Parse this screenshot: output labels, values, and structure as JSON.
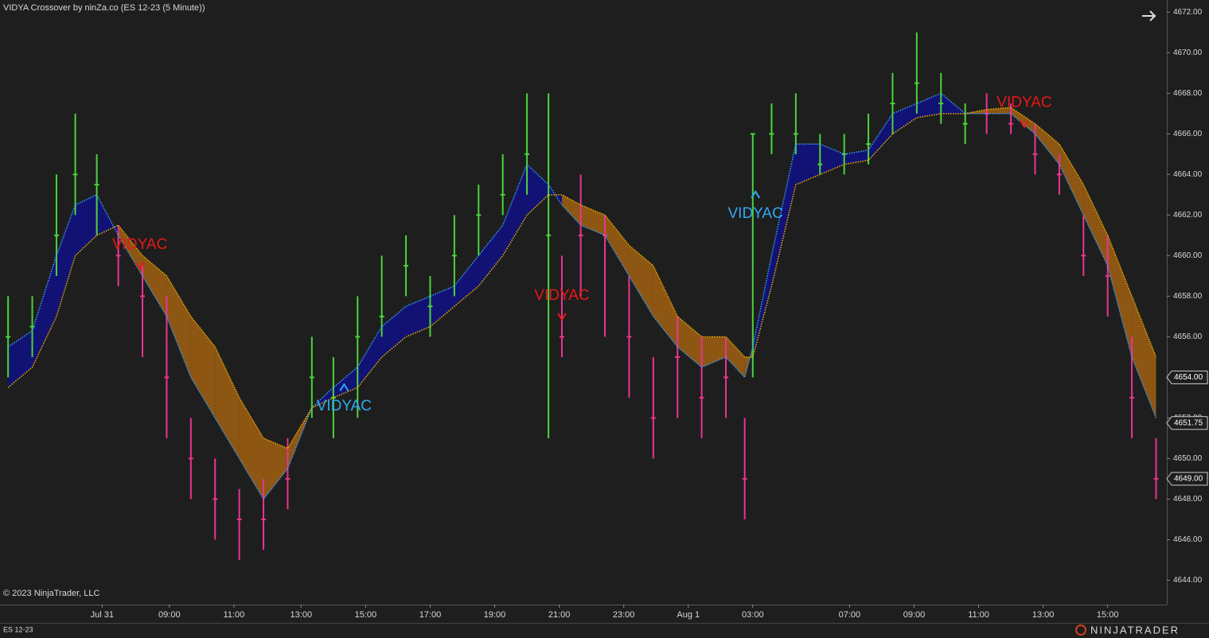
{
  "chart_data": {
    "type": "range",
    "title": "VIDYA Crossover by ninZa.co (ES 12-23 (5 Minute))",
    "copyright": "© 2023 NinjaTrader, LLC",
    "instrument": "ES 12-23",
    "brand": "NINJATRADER",
    "xlim": [
      0,
      434
    ],
    "ylim": [
      4642.8,
      4672.6
    ],
    "yticks": [
      {
        "value": 4644,
        "label": "4644.00"
      },
      {
        "value": 4646,
        "label": "4646.00"
      },
      {
        "value": 4648,
        "label": "4648.00"
      },
      {
        "value": 4650,
        "label": "4650.00"
      },
      {
        "value": 4652,
        "label": "4652.00"
      },
      {
        "value": 4654,
        "label": "4654.00"
      },
      {
        "value": 4656,
        "label": "4656.00"
      },
      {
        "value": 4658,
        "label": "4658.00"
      },
      {
        "value": 4660,
        "label": "4660.00"
      },
      {
        "value": 4662,
        "label": "4662.00"
      },
      {
        "value": 4664,
        "label": "4664.00"
      },
      {
        "value": 4666,
        "label": "4666.00"
      },
      {
        "value": 4668,
        "label": "4668.00"
      },
      {
        "value": 4670,
        "label": "4670.00"
      },
      {
        "value": 4672,
        "label": "4672.00"
      }
    ],
    "xticks": [
      {
        "value": 38,
        "label": "Jul 31"
      },
      {
        "value": 63,
        "label": "09:00"
      },
      {
        "value": 87,
        "label": "11:00"
      },
      {
        "value": 112,
        "label": "13:00"
      },
      {
        "value": 136,
        "label": "15:00"
      },
      {
        "value": 160,
        "label": "17:00"
      },
      {
        "value": 184,
        "label": "19:00"
      },
      {
        "value": 208,
        "label": "21:00"
      },
      {
        "value": 232,
        "label": "23:00"
      },
      {
        "value": 256,
        "label": "Aug 1"
      },
      {
        "value": 280,
        "label": "03:00"
      },
      {
        "value": 316,
        "label": "07:00"
      },
      {
        "value": 340,
        "label": "09:00"
      },
      {
        "value": 364,
        "label": "11:00"
      },
      {
        "value": 388,
        "label": "13:00"
      },
      {
        "value": 412,
        "label": "15:00"
      }
    ],
    "x": [
      3,
      12,
      21,
      28,
      36,
      44,
      53,
      62,
      71,
      80,
      89,
      98,
      107,
      116,
      124,
      133,
      142,
      151,
      160,
      169,
      178,
      187,
      196,
      204,
      209,
      216,
      225,
      234,
      243,
      252,
      261,
      270,
      277,
      280,
      287,
      296,
      305,
      314,
      323,
      332,
      341,
      350,
      359,
      367,
      376,
      385,
      394,
      403,
      412,
      421,
      430
    ],
    "high": [
      4658,
      4658,
      4664,
      4667,
      4665,
      4661.5,
      4659.5,
      4658,
      4652,
      4650,
      4648.5,
      4649,
      4651,
      4656,
      4655,
      4658,
      4660,
      4661,
      4659,
      4662,
      4663.5,
      4665,
      4668,
      4668,
      4660,
      4664,
      4662,
      4659,
      4655,
      4657,
      4656,
      4656,
      4652,
      4666,
      4667.5,
      4668,
      4666,
      4666,
      4667,
      4669,
      4671,
      4669,
      4667.5,
      4668,
      4667.5,
      4666.5,
      4665,
      4662,
      4661,
      4656,
      4651
    ],
    "low": [
      4654,
      4655,
      4659,
      4662,
      4661,
      4658.5,
      4655,
      4651,
      4648,
      4646,
      4645,
      4645.5,
      4647.5,
      4652,
      4651,
      4652,
      4656,
      4658,
      4656,
      4658,
      4660,
      4662,
      4663,
      4651,
      4655,
      4658,
      4656,
      4653,
      4650,
      4652,
      4651,
      4652,
      4647,
      4654,
      4665,
      4665,
      4664,
      4664,
      4664.5,
      4666,
      4667,
      4666.5,
      4665.5,
      4666,
      4666,
      4664,
      4663,
      4659,
      4657,
      4651,
      4648
    ],
    "close": [
      4656,
      4656.5,
      4661,
      4664,
      4663.5,
      4660,
      4658,
      4654,
      4650,
      4648,
      4647,
      4647,
      4649,
      4654,
      4653,
      4656,
      4657,
      4659.5,
      4657.5,
      4660,
      4662,
      4663,
      4665,
      4661,
      4656,
      4661,
      4661,
      4656,
      4652,
      4655,
      4653,
      4654,
      4649,
      4666,
      4666,
      4666,
      4664.5,
      4665,
      4665.5,
      4667.5,
      4668.5,
      4667.5,
      4666.5,
      4667,
      4666.5,
      4665,
      4664,
      4660,
      4659,
      4653,
      4649
    ],
    "fast": [
      4655.5,
      4656.3,
      4660,
      4662.5,
      4663,
      4661,
      4659,
      4657,
      4654,
      4652,
      4650,
      4648,
      4649.5,
      4652.5,
      4653.5,
      4654.5,
      4656.5,
      4657.5,
      4658,
      4658.5,
      4660,
      4661.5,
      4664.5,
      4663.5,
      4662.5,
      4661.5,
      4661,
      4659,
      4657,
      4655.5,
      4654.5,
      4655,
      4654,
      4655.5,
      4660,
      4665.5,
      4665.5,
      4665,
      4665.2,
      4667,
      4667.5,
      4668,
      4667,
      4667,
      4667,
      4666,
      4664.5,
      4662,
      4659.5,
      4655,
      4652
    ],
    "slow": [
      4653.5,
      4654.5,
      4657,
      4660,
      4661,
      4661.5,
      4660,
      4659,
      4657,
      4655.5,
      4653,
      4651,
      4650.5,
      4652.5,
      4653,
      4653.5,
      4655,
      4656,
      4656.5,
      4657.5,
      4658.5,
      4660,
      4662,
      4663,
      4663,
      4662.5,
      4662,
      4660.5,
      4659.5,
      4657,
      4656,
      4656,
      4655,
      4655,
      4658.5,
      4663.5,
      4664,
      4664.5,
      4664.7,
      4666,
      4666.8,
      4667,
      4667,
      4667.2,
      4667.3,
      4666.5,
      4665.5,
      4663.5,
      4661,
      4658,
      4655
    ],
    "up_color": "#4ad43a",
    "down_color": "#e8358f",
    "bull_fill": "#11117e",
    "bear_fill": "#9a5c12",
    "bull_line": "#3aa0ff",
    "bear_line": "#f0b400",
    "signals": [
      {
        "label": "VIDYAC",
        "x": 52,
        "price": 4659.5,
        "color": "#e81818"
      },
      {
        "label": "VIDYAC",
        "x": 128,
        "price": 4653.5,
        "color": "#30a8f0"
      },
      {
        "label": "VIDYAC",
        "x": 209,
        "price": 4657,
        "color": "#e81818"
      },
      {
        "label": "VIDYAC",
        "x": 281,
        "price": 4663,
        "color": "#30a8f0"
      },
      {
        "label": "VIDYAC",
        "x": 381,
        "price": 4666.5,
        "color": "#e81818"
      }
    ],
    "price_markers": [
      {
        "value": 4654,
        "label": "4654.00"
      },
      {
        "value": 4651.75,
        "label": "4651.75"
      },
      {
        "value": 4649,
        "label": "4649.00"
      }
    ]
  }
}
